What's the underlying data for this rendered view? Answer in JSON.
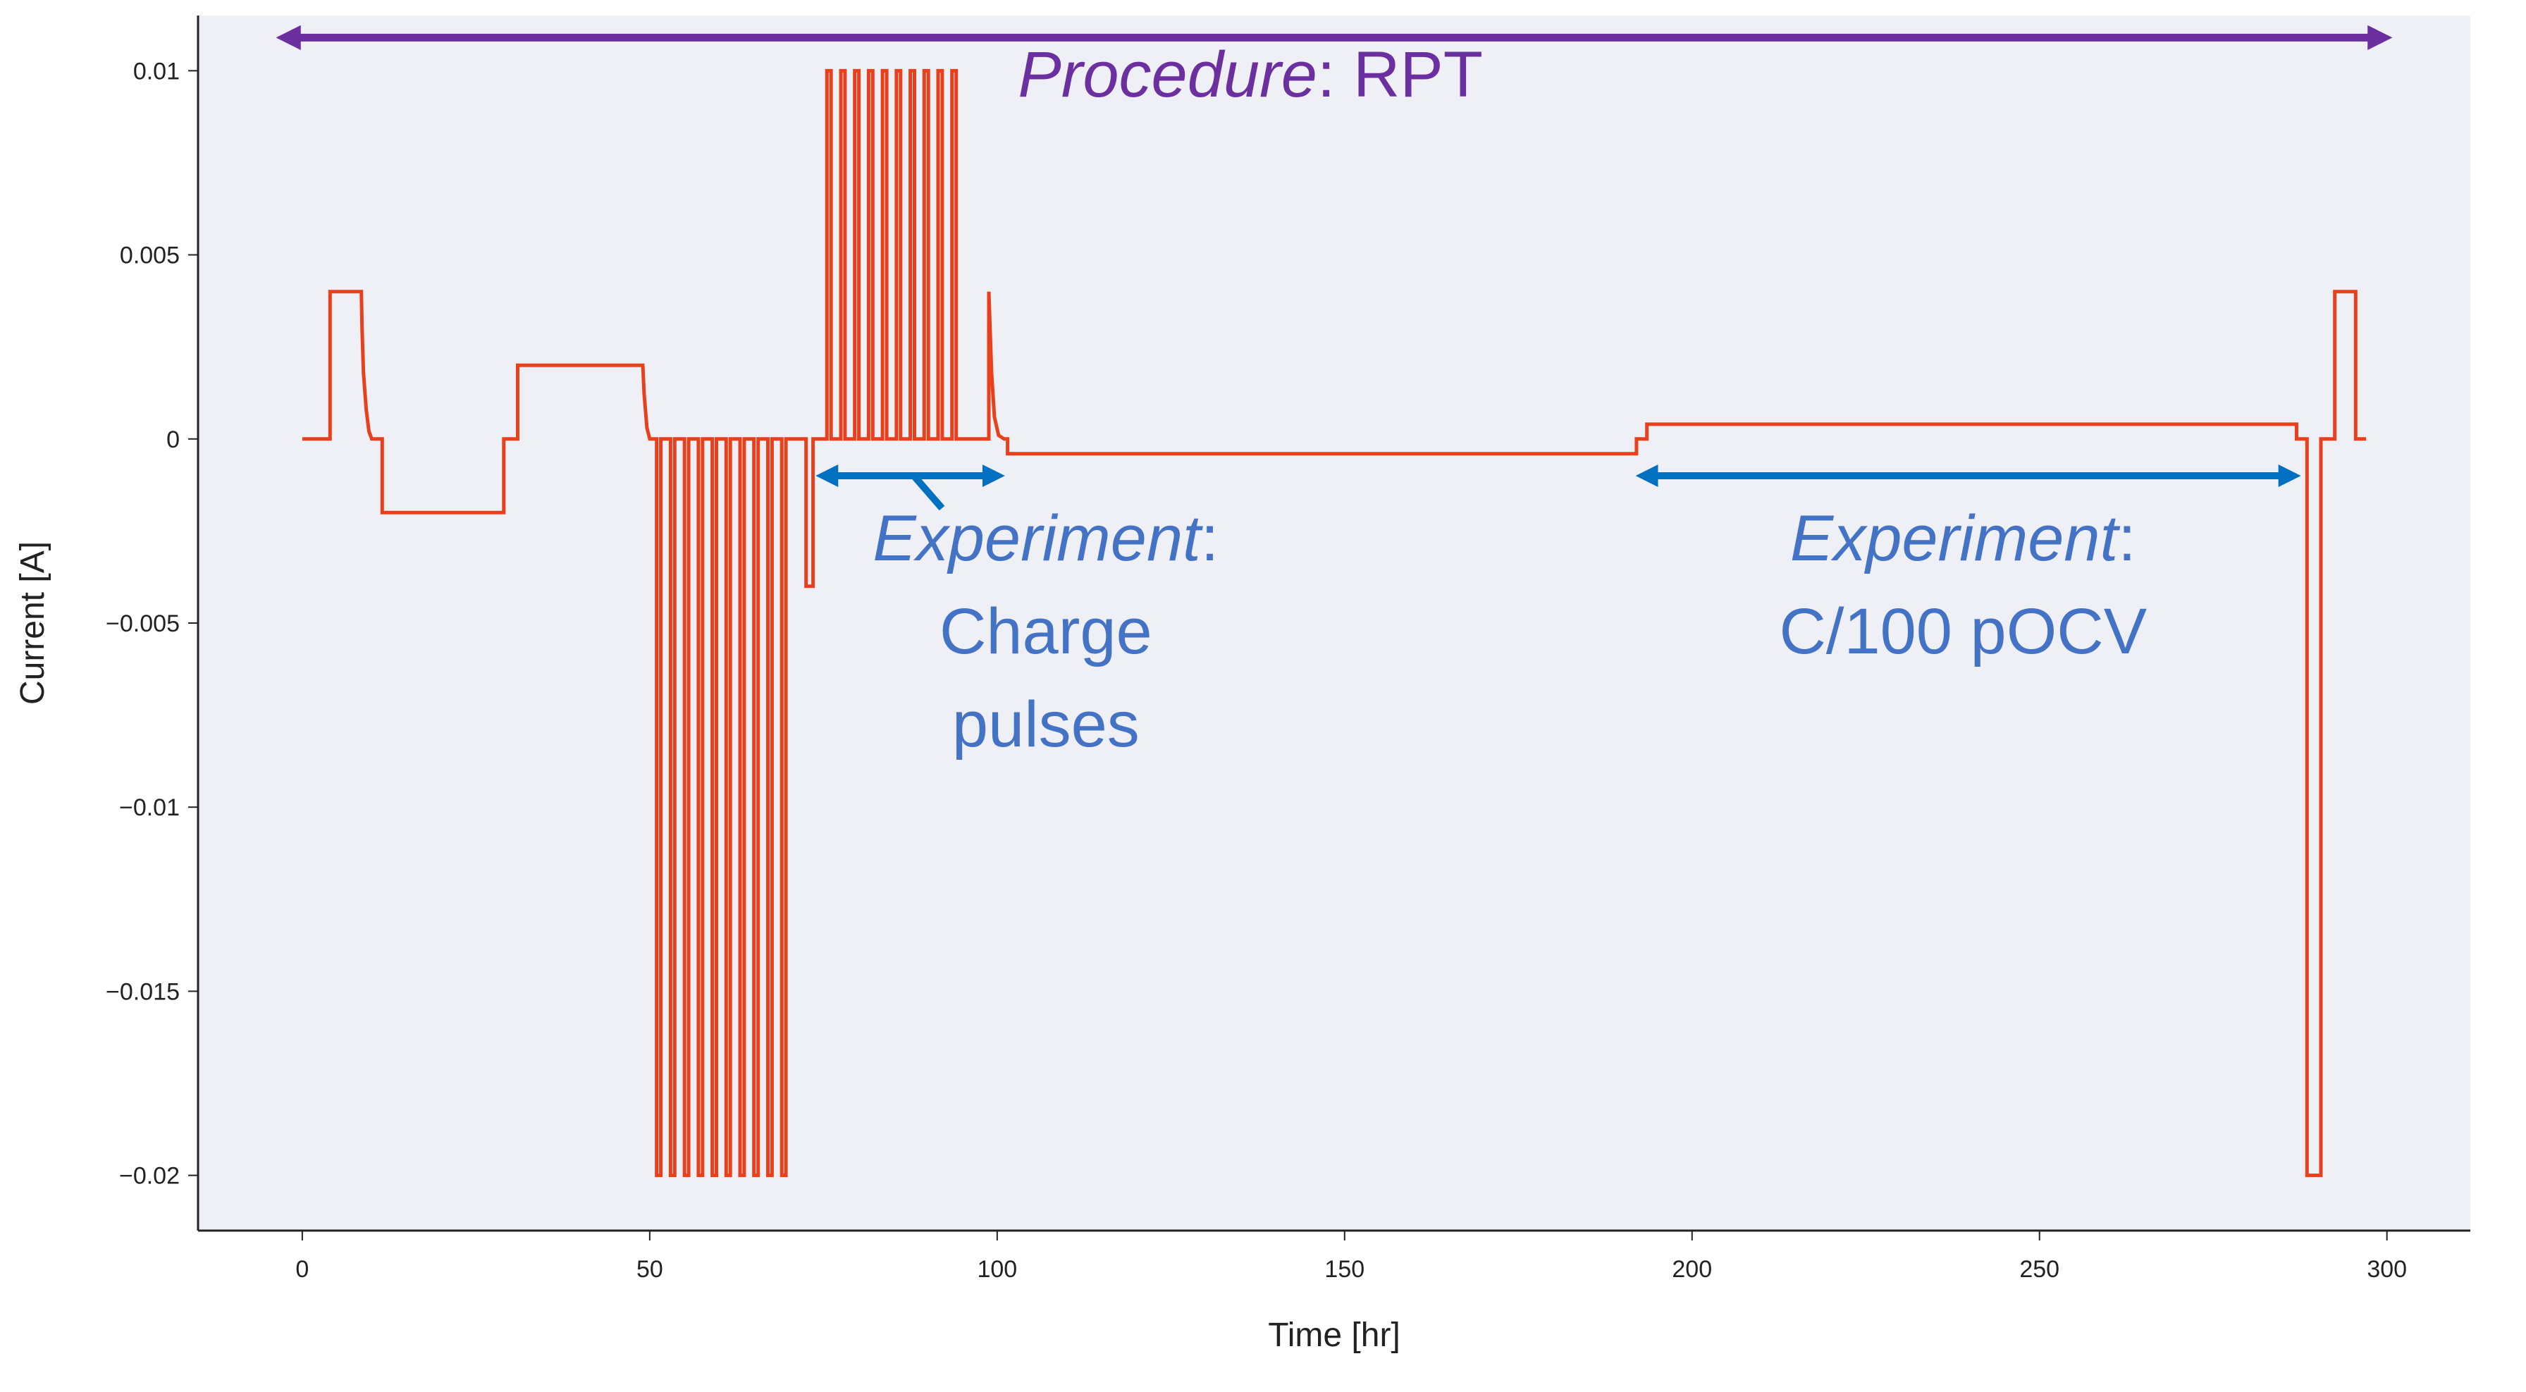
{
  "chart_data": {
    "type": "line",
    "xlabel": "Time [hr]",
    "ylabel": "Current [A]",
    "xlim": [
      -15,
      312
    ],
    "ylim": [
      -0.0215,
      0.0115
    ],
    "x_ticks": [
      0,
      50,
      100,
      150,
      200,
      250,
      300
    ],
    "x_tick_labels": [
      "0",
      "50",
      "100",
      "150",
      "200",
      "250",
      "300"
    ],
    "y_ticks": [
      0.01,
      0.005,
      0,
      -0.005,
      -0.01,
      -0.015,
      -0.02
    ],
    "y_tick_labels": [
      "0.01",
      "0.005",
      "0",
      "−0.005",
      "−0.01",
      "−0.015",
      "−0.02"
    ],
    "grid": false,
    "background": "#eff0f5",
    "series": [
      {
        "color": "#e8401c",
        "pulse_blocks": [
          {
            "start": 51,
            "period": 2,
            "count": 10,
            "width": 0.6,
            "value": -0.02
          },
          {
            "start": 75.5,
            "period": 2,
            "count": 10,
            "width": 0.6,
            "value": 0.01
          }
        ],
        "x": [
          0,
          4,
          4,
          8.5,
          8.6,
          8.8,
          9.2,
          9.6,
          10,
          11.5,
          11.5,
          29,
          29,
          31,
          31,
          49,
          49.2,
          49.6,
          50,
          51,
          72.5,
          72.5,
          73.5,
          73.5,
          73.5,
          75.5,
          97,
          98.8,
          98.8,
          99.2,
          99.6,
          100.2,
          101,
          101,
          101.5,
          101.5,
          192,
          192,
          193.5,
          193.5,
          287,
          287,
          288.5,
          288.5,
          290.5,
          290.5,
          292.5,
          292.5,
          295.5,
          295.5,
          297
        ],
        "y": [
          0,
          0,
          0.004,
          0.004,
          0.003,
          0.0018,
          0.0008,
          0.0002,
          0,
          0,
          -0.002,
          -0.002,
          0,
          0,
          0.002,
          0.002,
          0.0012,
          0.0003,
          0,
          0,
          0,
          -0.004,
          -0.004,
          0,
          0,
          0,
          0,
          0,
          0.004,
          0.0018,
          0.0006,
          0.0001,
          0,
          0,
          0,
          -0.0004,
          -0.0004,
          0,
          0,
          0.0004,
          0.0004,
          0,
          0,
          -0.02,
          -0.02,
          0,
          0,
          0.004,
          0.004,
          0,
          0
        ]
      }
    ],
    "annotations": [
      {
        "id": "procedure",
        "italic": "Procedure",
        "normal": ": RPT",
        "color": "#6b2fa0",
        "arrow_x": [
          -2,
          299
        ],
        "arrow_y": 0.0109,
        "text_x": 103,
        "text_y": 0.0093
      },
      {
        "id": "charge",
        "italic": "Experiment",
        "normal": ":",
        "lines": [
          "Charge",
          "pulses"
        ],
        "color": "#4472c4",
        "arrow_color": "#0070c0",
        "arrow_x": [
          75.5,
          99.5
        ],
        "arrow_y": -0.001,
        "text_x": 107,
        "text_y": -0.0033
      },
      {
        "id": "pocv",
        "italic": "Experiment",
        "normal": ":",
        "lines": [
          "C/100 pOCV"
        ],
        "color": "#4472c4",
        "arrow_color": "#0070c0",
        "arrow_x": [
          193.5,
          286
        ],
        "arrow_y": -0.001,
        "text_x": 239,
        "text_y": -0.0033
      }
    ]
  }
}
